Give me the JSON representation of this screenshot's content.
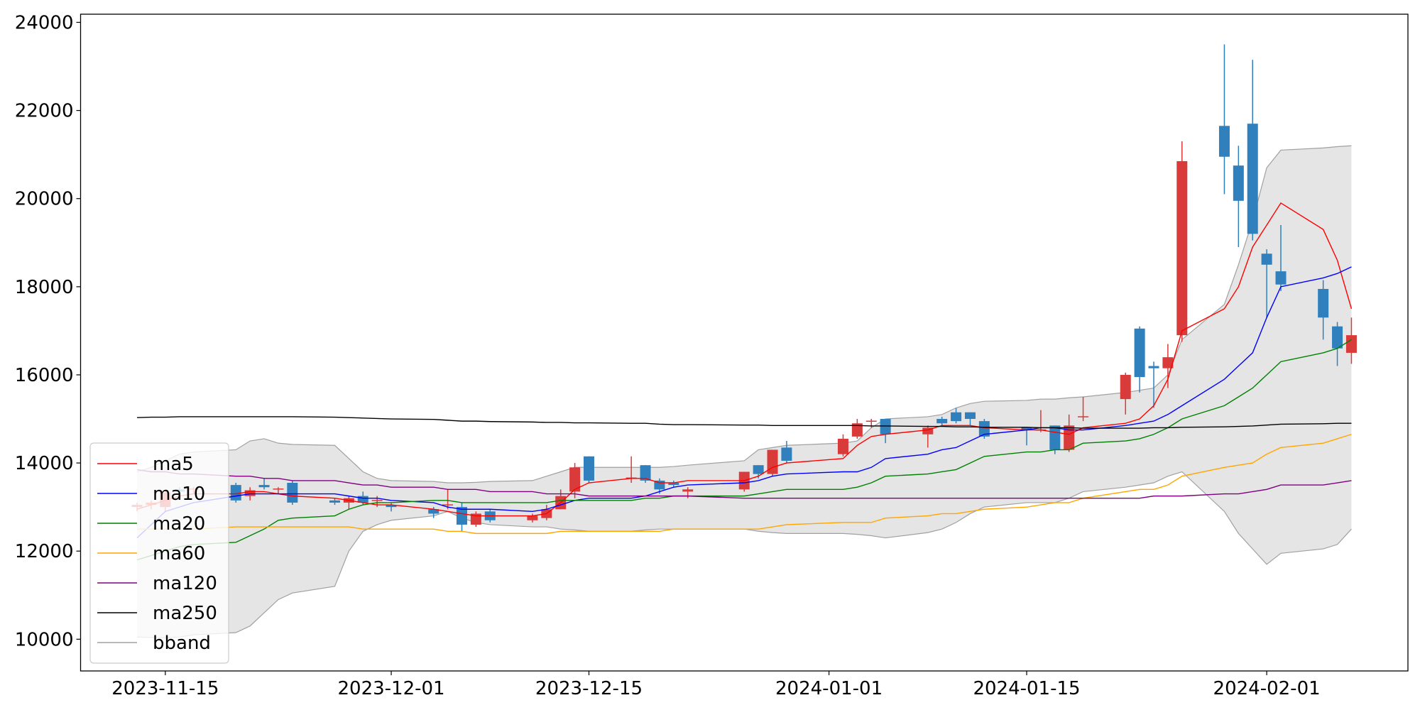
{
  "chart_data": {
    "type": "candlestick",
    "x": [
      "2023-11-13",
      "2023-11-14",
      "2023-11-15",
      "2023-11-16",
      "2023-11-17",
      "2023-11-20",
      "2023-11-21",
      "2023-11-22",
      "2023-11-23",
      "2023-11-24",
      "2023-11-27",
      "2023-11-28",
      "2023-11-29",
      "2023-11-30",
      "2023-12-01",
      "2023-12-04",
      "2023-12-05",
      "2023-12-06",
      "2023-12-07",
      "2023-12-08",
      "2023-12-11",
      "2023-12-12",
      "2023-12-13",
      "2023-12-14",
      "2023-12-15",
      "2023-12-18",
      "2023-12-19",
      "2023-12-20",
      "2023-12-21",
      "2023-12-22",
      "2023-12-26",
      "2023-12-27",
      "2023-12-28",
      "2023-12-29",
      "2024-01-02",
      "2024-01-03",
      "2024-01-04",
      "2024-01-05",
      "2024-01-08",
      "2024-01-09",
      "2024-01-10",
      "2024-01-11",
      "2024-01-12",
      "2024-01-15",
      "2024-01-16",
      "2024-01-17",
      "2024-01-18",
      "2024-01-19",
      "2024-01-22",
      "2024-01-23",
      "2024-01-24",
      "2024-01-25",
      "2024-01-26",
      "2024-01-29",
      "2024-01-30",
      "2024-01-31",
      "2024-02-01",
      "2024-02-02",
      "2024-02-05",
      "2024-02-06",
      "2024-02-07"
    ],
    "open": [
      13000,
      13050,
      13000,
      13400,
      13400,
      13500,
      13250,
      13500,
      13400,
      13550,
      13150,
      13100,
      13250,
      13150,
      13050,
      12950,
      13050,
      13000,
      12600,
      12900,
      12700,
      12750,
      12950,
      13350,
      14150,
      13650,
      13950,
      13600,
      13550,
      13350,
      13400,
      13950,
      13750,
      14350,
      14200,
      14600,
      14950,
      15000,
      14650,
      15000,
      15150,
      15150,
      14950,
      14800,
      14750,
      14850,
      14300,
      15050,
      15450,
      17050,
      16200,
      16150,
      16900,
      21650,
      20750,
      21700,
      18750,
      18350,
      17950,
      17100,
      16500
    ],
    "high": [
      13100,
      13150,
      13350,
      13450,
      13450,
      13550,
      13450,
      13650,
      13450,
      13600,
      13200,
      13250,
      13350,
      13250,
      13100,
      13000,
      13400,
      13100,
      12900,
      12950,
      12850,
      13050,
      13400,
      14000,
      14150,
      14150,
      13950,
      13650,
      13600,
      13450,
      13800,
      13950,
      14300,
      14500,
      14650,
      15000,
      15000,
      15000,
      14850,
      15050,
      15250,
      15150,
      15000,
      14800,
      15200,
      14850,
      15100,
      15500,
      16050,
      17100,
      16300,
      16700,
      21300,
      23500,
      21200,
      23150,
      18850,
      19400,
      18150,
      17200,
      17300
    ],
    "low": [
      12900,
      12950,
      12900,
      13300,
      13300,
      13100,
      13150,
      13400,
      13300,
      13050,
      13050,
      12950,
      13050,
      13000,
      12900,
      12750,
      12950,
      12450,
      12550,
      12650,
      12650,
      12700,
      12950,
      13200,
      13550,
      13550,
      13550,
      13300,
      13450,
      13200,
      13350,
      13650,
      13700,
      14000,
      14150,
      14550,
      14800,
      14450,
      14350,
      14850,
      14900,
      14850,
      14550,
      14400,
      14700,
      14200,
      14250,
      14950,
      15100,
      15600,
      15250,
      15700,
      16750,
      20100,
      18900,
      19050,
      17300,
      17900,
      16800,
      16200,
      16250
    ],
    "close": [
      13050,
      13100,
      13330,
      13350,
      13420,
      13150,
      13380,
      13450,
      13420,
      13100,
      13100,
      13200,
      13100,
      13160,
      13000,
      12850,
      13060,
      12600,
      12850,
      12700,
      12800,
      12950,
      13250,
      13900,
      13600,
      13670,
      13600,
      13400,
      13500,
      13400,
      13800,
      13750,
      14300,
      14050,
      14550,
      14900,
      14960,
      14650,
      14800,
      14900,
      14950,
      15000,
      14600,
      14750,
      14760,
      14300,
      14850,
      15060,
      16000,
      15950,
      16150,
      16400,
      20850,
      20950,
      19950,
      19200,
      18500,
      18050,
      17300,
      16600,
      16900
    ],
    "up_color": "#d93a3a",
    "down_color": "#2f80bd",
    "series": [
      {
        "name": "ma5",
        "color": "#ff0000",
        "values": [
          12950,
          13050,
          13150,
          13250,
          13300,
          13300,
          13350,
          13350,
          13300,
          13250,
          13200,
          13150,
          13100,
          13050,
          13050,
          12950,
          12900,
          12850,
          12800,
          12800,
          12800,
          12850,
          13100,
          13400,
          13550,
          13650,
          13650,
          13550,
          13550,
          13600,
          13600,
          13700,
          13900,
          14000,
          14100,
          14400,
          14600,
          14650,
          14750,
          14850,
          14850,
          14850,
          14800,
          14750,
          14750,
          14700,
          14650,
          14800,
          14900,
          15000,
          15300,
          15900,
          17000,
          17500,
          18000,
          18900,
          19400,
          19900,
          19300,
          18600,
          17500
        ]
      },
      {
        "name": "ma10",
        "color": "#0000ff",
        "values": [
          12300,
          12600,
          12900,
          13000,
          13100,
          13250,
          13300,
          13300,
          13300,
          13300,
          13300,
          13250,
          13200,
          13200,
          13150,
          13100,
          13000,
          12950,
          12950,
          12950,
          12900,
          12950,
          13050,
          13150,
          13200,
          13200,
          13250,
          13350,
          13450,
          13500,
          13550,
          13600,
          13700,
          13750,
          13800,
          13800,
          13900,
          14100,
          14200,
          14300,
          14350,
          14500,
          14650,
          14750,
          14800,
          14800,
          14750,
          14750,
          14850,
          14900,
          14950,
          15100,
          15300,
          15900,
          16200,
          16500,
          17300,
          18000,
          18200,
          18300,
          18450
        ]
      },
      {
        "name": "ma20",
        "color": "#008000",
        "values": [
          11800,
          11900,
          12000,
          12100,
          12150,
          12200,
          12350,
          12500,
          12700,
          12750,
          12800,
          12950,
          13050,
          13100,
          13100,
          13150,
          13150,
          13100,
          13100,
          13100,
          13100,
          13100,
          13150,
          13150,
          13150,
          13150,
          13200,
          13200,
          13250,
          13250,
          13250,
          13300,
          13350,
          13400,
          13400,
          13450,
          13550,
          13700,
          13750,
          13800,
          13850,
          14000,
          14150,
          14250,
          14250,
          14300,
          14300,
          14450,
          14500,
          14550,
          14650,
          14800,
          15000,
          15300,
          15500,
          15700,
          16000,
          16300,
          16500,
          16600,
          16800
        ]
      },
      {
        "name": "ma60",
        "color": "#ffa500",
        "values": [
          12500,
          12500,
          12500,
          12500,
          12500,
          12550,
          12550,
          12550,
          12550,
          12550,
          12550,
          12550,
          12500,
          12500,
          12500,
          12500,
          12450,
          12450,
          12400,
          12400,
          12400,
          12400,
          12450,
          12450,
          12450,
          12450,
          12450,
          12450,
          12500,
          12500,
          12500,
          12500,
          12550,
          12600,
          12650,
          12650,
          12650,
          12750,
          12800,
          12850,
          12850,
          12900,
          12950,
          13000,
          13050,
          13100,
          13100,
          13200,
          13350,
          13400,
          13400,
          13500,
          13700,
          13900,
          13950,
          14000,
          14200,
          14350,
          14450,
          14550,
          14650
        ]
      },
      {
        "name": "ma120",
        "color": "#800080",
        "values": [
          13850,
          13800,
          13800,
          13750,
          13750,
          13700,
          13700,
          13650,
          13650,
          13600,
          13600,
          13550,
          13500,
          13500,
          13450,
          13450,
          13400,
          13400,
          13400,
          13350,
          13350,
          13300,
          13300,
          13300,
          13250,
          13250,
          13250,
          13250,
          13250,
          13250,
          13200,
          13200,
          13200,
          13200,
          13200,
          13200,
          13200,
          13200,
          13200,
          13200,
          13200,
          13200,
          13200,
          13200,
          13200,
          13200,
          13200,
          13200,
          13200,
          13200,
          13250,
          13250,
          13250,
          13300,
          13300,
          13350,
          13400,
          13500,
          13500,
          13550,
          13600
        ]
      },
      {
        "name": "ma250",
        "color": "#000000",
        "values": [
          15030,
          15040,
          15040,
          15050,
          15050,
          15050,
          15050,
          15050,
          15050,
          15050,
          15040,
          15030,
          15020,
          15010,
          15000,
          14990,
          14970,
          14950,
          14950,
          14940,
          14930,
          14920,
          14920,
          14910,
          14910,
          14900,
          14900,
          14880,
          14870,
          14870,
          14860,
          14860,
          14850,
          14850,
          14850,
          14850,
          14840,
          14840,
          14830,
          14830,
          14820,
          14820,
          14810,
          14810,
          14800,
          14800,
          14800,
          14790,
          14790,
          14790,
          14800,
          14800,
          14810,
          14820,
          14830,
          14840,
          14860,
          14880,
          14890,
          14900,
          14900
        ]
      }
    ],
    "bband": {
      "name": "bband",
      "color": "#a0a0a0",
      "fill": "#e5e5e5",
      "upper": [
        13800,
        13900,
        14050,
        14200,
        14250,
        14300,
        14500,
        14550,
        14450,
        14420,
        14400,
        14100,
        13800,
        13650,
        13600,
        13580,
        13550,
        13550,
        13560,
        13580,
        13600,
        13700,
        13800,
        13900,
        13900,
        13900,
        13900,
        13900,
        13920,
        13950,
        14050,
        14300,
        14350,
        14400,
        14450,
        14500,
        14800,
        15000,
        15050,
        15100,
        15250,
        15350,
        15400,
        15420,
        15450,
        15450,
        15480,
        15500,
        15600,
        15650,
        15700,
        16000,
        16800,
        17600,
        18500,
        19500,
        20700,
        21100,
        21150,
        21180,
        21200
      ],
      "lower": [
        10050,
        10040,
        10030,
        10050,
        10100,
        10150,
        10300,
        10600,
        10900,
        11050,
        11200,
        12000,
        12450,
        12600,
        12700,
        12800,
        12900,
        12750,
        12650,
        12600,
        12550,
        12550,
        12500,
        12480,
        12450,
        12450,
        12480,
        12500,
        12500,
        12500,
        12500,
        12450,
        12420,
        12400,
        12400,
        12380,
        12350,
        12300,
        12420,
        12500,
        12650,
        12850,
        13000,
        13100,
        13100,
        13100,
        13200,
        13350,
        13450,
        13500,
        13550,
        13700,
        13800,
        12900,
        12400,
        12050,
        11700,
        11950,
        12050,
        12150,
        12500
      ]
    },
    "xlim": [
      "2023-11-09",
      "2024-02-11"
    ],
    "xticks": [
      "2023-11-15",
      "2023-12-01",
      "2023-12-15",
      "2024-01-01",
      "2024-01-15",
      "2024-02-01"
    ],
    "ylim": [
      9280,
      24185
    ],
    "yticks": [
      10000,
      12000,
      14000,
      16000,
      18000,
      20000,
      22000,
      24000
    ],
    "legend": "lower left"
  }
}
